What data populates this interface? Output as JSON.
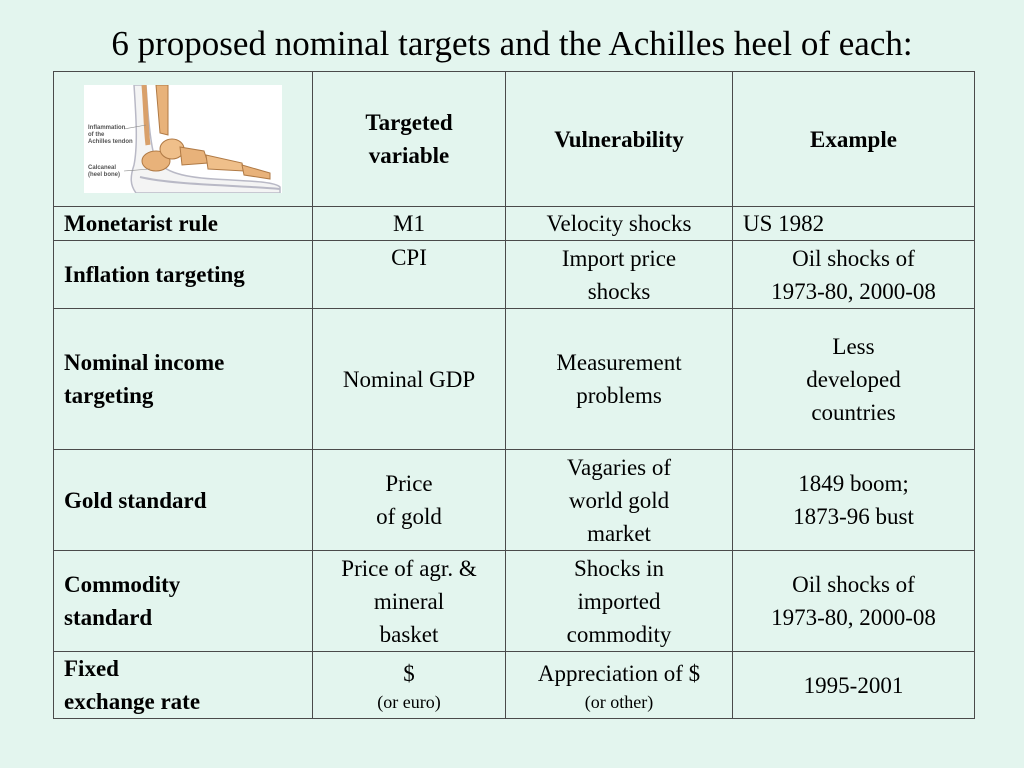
{
  "title": "6 proposed nominal targets and the Achilles heel of each:",
  "image": {
    "name": "foot-achilles-illustration",
    "caption_lines": [
      "Inflammation",
      "of the",
      "Achilles tendon",
      "Calcaneal",
      "(heel bone)"
    ]
  },
  "header": {
    "targeted_variable": [
      "Targeted",
      "variable"
    ],
    "vulnerability": "Vulnerability",
    "example": "Example"
  },
  "rows": [
    {
      "name": [
        "Monetarist rule"
      ],
      "variable": [
        "M1"
      ],
      "vulnerability": [
        "Velocity shocks"
      ],
      "example": [
        "US 1982"
      ]
    },
    {
      "name": [
        "Inflation targeting"
      ],
      "variable": [
        "CPI"
      ],
      "vulnerability": [
        "Import price",
        "shocks"
      ],
      "example": [
        "Oil shocks of",
        "1973-80, 2000-08"
      ]
    },
    {
      "name": [
        "Nominal income",
        "targeting"
      ],
      "variable": [
        "Nominal GDP"
      ],
      "vulnerability": [
        "Measurement",
        "problems"
      ],
      "example": [
        "Less",
        "developed",
        "countries"
      ]
    },
    {
      "name": [
        "Gold standard"
      ],
      "variable": [
        "Price",
        "of gold"
      ],
      "vulnerability": [
        "Vagaries of",
        "world gold",
        "market"
      ],
      "example": [
        "1849 boom;",
        "1873-96 bust"
      ]
    },
    {
      "name": [
        "Commodity",
        "standard"
      ],
      "variable": [
        "Price of agr. &",
        "mineral",
        "basket"
      ],
      "vulnerability": [
        "Shocks in",
        "imported",
        "commodity"
      ],
      "example": [
        "Oil shocks of",
        "1973-80, 2000-08"
      ]
    },
    {
      "name": [
        "Fixed",
        "exchange rate"
      ],
      "variable": [
        "$"
      ],
      "variable_note": "(or euro)",
      "vulnerability": [
        "Appreciation of $"
      ],
      "vulnerability_note": "(or other)",
      "example": [
        "1995-2001"
      ]
    }
  ],
  "colors": {
    "background": "#e3f5ee",
    "border": "#4a4a4a",
    "bone": "#e8b27a"
  }
}
